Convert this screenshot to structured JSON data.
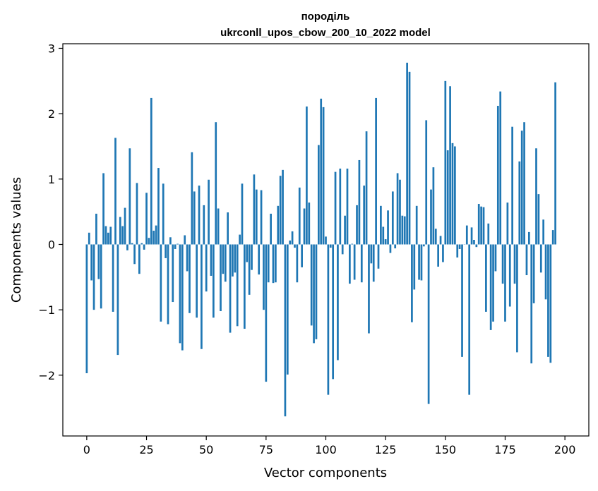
{
  "chart_data": {
    "type": "bar",
    "title": "породіль",
    "subtitle": "ukrconll_upos_cbow_200_10_2022 model",
    "xlabel": "Vector components",
    "ylabel": "Components values",
    "xlim": [
      -10,
      210
    ],
    "ylim": [
      -2.93,
      3.07
    ],
    "x_ticks": [
      0,
      25,
      50,
      75,
      100,
      125,
      150,
      175,
      200
    ],
    "y_ticks": [
      -2,
      -1,
      0,
      1,
      2,
      3
    ],
    "x_tick_labels": [
      "0",
      "25",
      "50",
      "75",
      "100",
      "125",
      "150",
      "175",
      "200"
    ],
    "y_tick_labels": [
      "−2",
      "−1",
      "0",
      "1",
      "2",
      "3"
    ],
    "bar_color": "#1f77b4",
    "grid": false,
    "values": [
      -1.97,
      0.18,
      -0.55,
      -1.0,
      0.47,
      -0.53,
      -0.98,
      1.09,
      0.28,
      0.18,
      0.27,
      -1.03,
      1.63,
      -1.69,
      0.42,
      0.28,
      0.56,
      -0.09,
      1.47,
      0.02,
      -0.3,
      0.94,
      -0.45,
      0.02,
      -0.08,
      0.79,
      0.1,
      2.24,
      0.21,
      0.29,
      1.17,
      -1.18,
      0.93,
      -0.21,
      -1.22,
      0.11,
      -0.88,
      -0.07,
      0.01,
      -1.51,
      -1.62,
      0.14,
      -0.41,
      -1.05,
      1.41,
      0.81,
      -1.12,
      0.9,
      -1.6,
      0.6,
      -0.72,
      0.99,
      -0.48,
      -1.12,
      1.87,
      0.55,
      -1.02,
      -0.45,
      -0.57,
      0.49,
      -1.35,
      -0.49,
      -0.43,
      -1.25,
      0.15,
      0.93,
      -1.29,
      -0.27,
      -0.77,
      -0.39,
      1.07,
      0.84,
      -0.46,
      0.83,
      -1.0,
      -2.1,
      -0.58,
      0.47,
      -0.59,
      -0.58,
      0.59,
      1.05,
      1.14,
      -2.63,
      -1.99,
      0.06,
      0.2,
      -0.05,
      -0.58,
      0.87,
      -0.35,
      0.55,
      2.11,
      0.64,
      -1.24,
      -1.51,
      -1.45,
      1.52,
      2.23,
      2.1,
      0.12,
      -2.3,
      -0.05,
      -2.06,
      1.11,
      -1.77,
      1.16,
      -0.15,
      0.44,
      1.16,
      -0.6,
      0.01,
      -0.54,
      0.6,
      1.29,
      -0.58,
      0.9,
      1.73,
      -1.36,
      -0.29,
      -0.57,
      2.24,
      -0.37,
      0.59,
      0.27,
      0.08,
      0.52,
      -0.13,
      0.81,
      -0.06,
      1.09,
      0.99,
      0.44,
      0.43,
      2.78,
      2.64,
      -1.19,
      -0.69,
      0.59,
      -0.54,
      -0.55,
      -0.03,
      1.9,
      -2.44,
      0.84,
      1.18,
      0.24,
      -0.34,
      0.13,
      -0.27,
      2.5,
      1.44,
      2.42,
      1.55,
      1.5,
      -0.2,
      -0.07,
      -1.72,
      0.0,
      0.29,
      -2.3,
      0.26,
      0.07,
      -0.04,
      0.62,
      0.58,
      0.57,
      -1.03,
      0.32,
      -1.31,
      -1.18,
      -0.41,
      2.12,
      2.34,
      -0.6,
      -1.18,
      0.64,
      -0.95,
      1.8,
      -0.6,
      -1.65,
      1.27,
      1.74,
      1.87,
      -0.47,
      0.19,
      -1.82,
      -0.9,
      1.47,
      0.77,
      -0.43,
      0.38,
      -0.84,
      -1.72,
      -1.81,
      0.22,
      2.48
    ]
  }
}
